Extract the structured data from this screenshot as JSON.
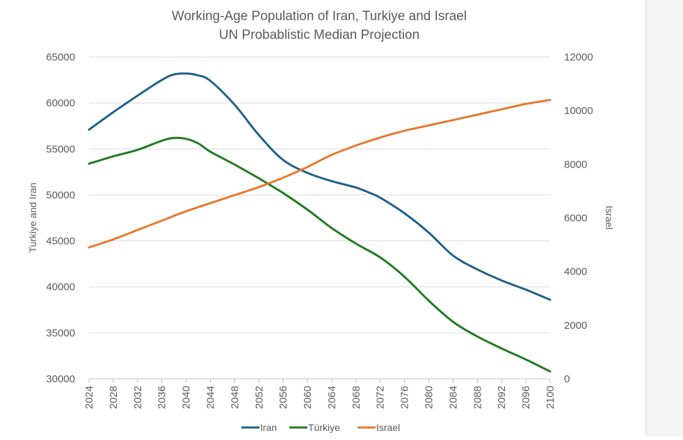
{
  "chart_data": {
    "type": "line",
    "title": "Working-Age Population of Iran, Turkiye and Israel",
    "subtitle": "UN Probablistic Median Projection",
    "xlabel": "",
    "ylabel": "Turkiye and Iran",
    "y2label": "Israel",
    "xlim": [
      2024,
      2100
    ],
    "ylim": [
      30000,
      65000
    ],
    "y2lim": [
      0,
      12000
    ],
    "x_ticks": [
      "2024",
      "2028",
      "2032",
      "2036",
      "2040",
      "2044",
      "2048",
      "2052",
      "2056",
      "2060",
      "2064",
      "2068",
      "2072",
      "2076",
      "2080",
      "2084",
      "2088",
      "2092",
      "2096",
      "2100"
    ],
    "y_ticks": [
      "30000",
      "35000",
      "40000",
      "45000",
      "50000",
      "55000",
      "60000",
      "65000"
    ],
    "y2_ticks": [
      "0",
      "2000",
      "4000",
      "6000",
      "8000",
      "10000",
      "12000"
    ],
    "grid": true,
    "legend_position": "bottom",
    "series": [
      {
        "name": "Iran",
        "axis": "left",
        "color": "#1f5f8b",
        "x": [
          2024,
          2028,
          2032,
          2036,
          2038,
          2040,
          2042,
          2044,
          2048,
          2052,
          2056,
          2060,
          2064,
          2068,
          2070,
          2072,
          2076,
          2080,
          2084,
          2088,
          2092,
          2096,
          2100
        ],
        "values": [
          57100,
          59000,
          60800,
          62500,
          63100,
          63200,
          63000,
          62400,
          59800,
          56500,
          53800,
          52400,
          51500,
          50800,
          50300,
          49700,
          48000,
          45900,
          43400,
          41900,
          40700,
          39700,
          38600
        ]
      },
      {
        "name": "Türkiye",
        "axis": "left",
        "color": "#1e7a1e",
        "x": [
          2024,
          2028,
          2032,
          2036,
          2038,
          2040,
          2042,
          2044,
          2048,
          2052,
          2056,
          2060,
          2064,
          2068,
          2072,
          2076,
          2080,
          2084,
          2088,
          2092,
          2096,
          2100
        ],
        "values": [
          53400,
          54200,
          54900,
          55900,
          56200,
          56100,
          55600,
          54700,
          53300,
          51800,
          50200,
          48400,
          46400,
          44700,
          43200,
          41100,
          38500,
          36200,
          34600,
          33300,
          32100,
          30800
        ]
      },
      {
        "name": "Israel",
        "axis": "right",
        "color": "#e8772e",
        "x": [
          2024,
          2028,
          2032,
          2036,
          2040,
          2044,
          2048,
          2052,
          2056,
          2060,
          2064,
          2068,
          2072,
          2076,
          2080,
          2084,
          2088,
          2092,
          2096,
          2100
        ],
        "values": [
          4900,
          5200,
          5550,
          5900,
          6250,
          6550,
          6850,
          7150,
          7500,
          7900,
          8350,
          8700,
          9000,
          9250,
          9450,
          9650,
          9850,
          10050,
          10250,
          10400
        ]
      }
    ]
  }
}
